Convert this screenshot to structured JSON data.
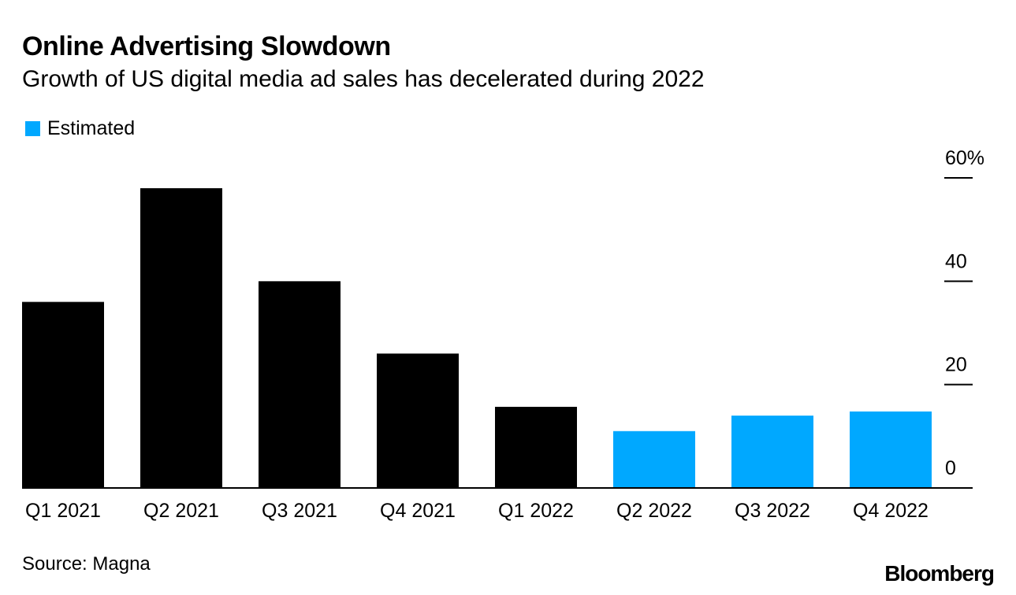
{
  "chart_data": {
    "type": "bar",
    "title": "Online Advertising Slowdown",
    "subtitle": "Growth of US digital media ad sales has decelerated during 2022",
    "categories": [
      "Q1 2021",
      "Q2 2021",
      "Q3 2021",
      "Q4 2021",
      "Q1 2022",
      "Q2 2022",
      "Q3 2022",
      "Q4 2022"
    ],
    "values": [
      36,
      58,
      40,
      26,
      15.7,
      11,
      14,
      14.8
    ],
    "estimated": [
      false,
      false,
      false,
      false,
      false,
      true,
      true,
      true
    ],
    "legend": [
      {
        "label": "Estimated",
        "color": "#00a8ff"
      }
    ],
    "y_axis": {
      "min": 0,
      "max": 60,
      "ticks": [
        0,
        20,
        40,
        60
      ],
      "tick_labels": [
        "0",
        "20",
        "40",
        "60%"
      ],
      "side": "right"
    },
    "xlabel": "",
    "ylabel": "",
    "grid": false,
    "colors": {
      "actual": "#000000",
      "estimated": "#00a8ff",
      "axis": "#000000"
    }
  },
  "footer": {
    "source": "Source: Magna",
    "brand": "Bloomberg"
  }
}
